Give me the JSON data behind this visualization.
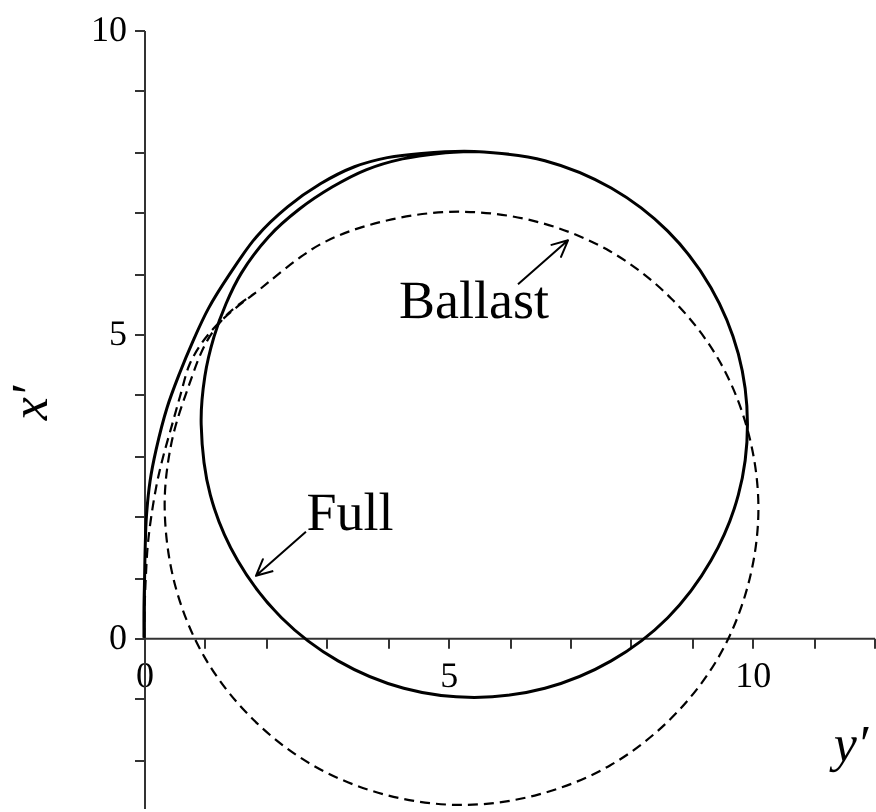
{
  "chart_data": {
    "type": "line",
    "xlabel": "y′",
    "ylabel": "x′",
    "xlim": [
      0,
      12
    ],
    "ylim": [
      -2.8,
      10
    ],
    "xticks": [
      0,
      {
        "value": 1,
        "label": null
      },
      {
        "value": 2,
        "label": null
      },
      {
        "value": 3,
        "label": null
      },
      {
        "value": 4,
        "label": null
      },
      5,
      {
        "value": 6,
        "label": null
      },
      {
        "value": 7,
        "label": null
      },
      {
        "value": 8,
        "label": null
      },
      {
        "value": 9,
        "label": null
      },
      10,
      {
        "value": 11,
        "label": null
      },
      {
        "value": 12,
        "label": null
      }
    ],
    "yticks": [
      {
        "value": -2,
        "label": null
      },
      {
        "value": -1,
        "label": null
      },
      0,
      {
        "value": 1,
        "label": null
      },
      {
        "value": 2,
        "label": null
      },
      {
        "value": 3,
        "label": null
      },
      {
        "value": 4,
        "label": null
      },
      5,
      {
        "value": 6,
        "label": null
      },
      {
        "value": 7,
        "label": null
      },
      {
        "value": 8,
        "label": null
      },
      {
        "value": 9,
        "label": null
      },
      10
    ],
    "annotations": [
      {
        "text": "Ballast",
        "x": 6.97,
        "y": 6.54
      },
      {
        "text": "Full",
        "x": 1.84,
        "y": 1.02
      }
    ],
    "series": [
      {
        "color": "#000000",
        "line_style": "solid",
        "x": [
          0,
          0,
          0.01,
          0.02,
          0.04,
          0.1,
          0.2,
          0.38,
          0.58,
          0.8,
          1.06,
          1.4,
          1.85,
          2.36,
          2.9,
          3.46,
          4.0,
          4.56,
          5.43,
          6.59,
          7.68,
          8.61,
          9.32,
          9.77,
          9.92,
          9.77,
          9.32,
          8.61,
          7.68,
          6.59,
          5.43,
          4.27,
          3.19,
          2.26,
          1.54,
          1.09,
          0.94,
          1.0,
          1.15,
          1.35,
          1.6,
          2.05,
          2.55,
          3.1,
          3.65,
          4.25,
          4.85,
          5.43
        ],
        "values": [
          0,
          0.5,
          1.0,
          1.5,
          2.0,
          2.58,
          3.1,
          3.79,
          4.34,
          4.87,
          5.42,
          5.97,
          6.6,
          7.09,
          7.47,
          7.75,
          7.9,
          7.97,
          8.0,
          7.85,
          7.4,
          6.69,
          5.76,
          4.67,
          3.51,
          2.35,
          1.27,
          0.33,
          -0.38,
          -0.83,
          -0.98,
          -0.83,
          -0.38,
          0.33,
          1.27,
          2.35,
          3.51,
          4.3,
          4.95,
          5.5,
          6.0,
          6.6,
          7.05,
          7.42,
          7.7,
          7.88,
          7.97,
          8.0
        ]
      },
      {
        "color": "#000000",
        "line_style": "dashed",
        "x": [
          0,
          0.01,
          0.03,
          0.06,
          0.12,
          0.22,
          0.32,
          0.46,
          0.6,
          0.75,
          0.95,
          1.2,
          1.5,
          1.81,
          2.91,
          4.01,
          5.22,
          6.48,
          7.66,
          8.67,
          9.45,
          9.93,
          10.1,
          9.93,
          9.45,
          8.67,
          7.66,
          6.48,
          5.22,
          3.96,
          2.78,
          1.77,
          0.99,
          0.51,
          0.34,
          0.45,
          0.72,
          1.04,
          1.4,
          1.81
        ],
        "values": [
          0,
          0.5,
          1.0,
          1.5,
          2.0,
          2.58,
          3.0,
          3.5,
          4.0,
          4.5,
          4.85,
          5.15,
          5.42,
          5.66,
          6.48,
          6.87,
          7.01,
          6.84,
          6.36,
          5.58,
          4.57,
          3.39,
          2.13,
          0.87,
          -0.31,
          -1.32,
          -2.1,
          -2.58,
          -2.75,
          -2.58,
          -2.1,
          -1.32,
          -0.31,
          0.87,
          2.13,
          3.2,
          4.1,
          4.89,
          5.35,
          5.66
        ]
      }
    ]
  }
}
